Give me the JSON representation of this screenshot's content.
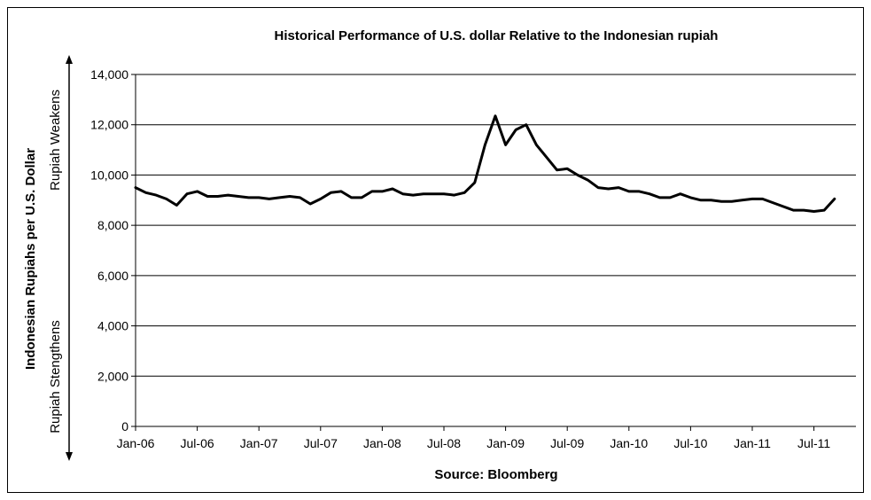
{
  "chart_data": {
    "type": "line",
    "title": "Historical Performance of U.S. dollar Relative to the Indonesian rupiah",
    "xlabel": "Source: Bloomberg",
    "ylabel": "Indonesian Rupiahs per U.S. Dollar",
    "annotations": {
      "top": "Rupiah Weakens",
      "bottom": "Rupiah Stengthens"
    },
    "ylim": [
      0,
      14000
    ],
    "y_ticks": [
      0,
      2000,
      4000,
      6000,
      8000,
      10000,
      12000,
      14000
    ],
    "y_tick_labels": [
      "0",
      "2,000",
      "4,000",
      "6,000",
      "8,000",
      "10,000",
      "12,000",
      "14,000"
    ],
    "x_tick_labels": [
      "Jan-06",
      "Jul-06",
      "Jan-07",
      "Jul-07",
      "Jan-08",
      "Jul-08",
      "Jan-09",
      "Jul-09",
      "Jan-10",
      "Jul-10",
      "Jan-11",
      "Jul-11"
    ],
    "x_tick_dates": [
      "2006-01",
      "2006-07",
      "2007-01",
      "2007-07",
      "2008-01",
      "2008-07",
      "2009-01",
      "2009-07",
      "2010-01",
      "2010-07",
      "2011-01",
      "2011-07"
    ],
    "grid": "horizontal",
    "x": [
      "2006-01",
      "2006-02",
      "2006-03",
      "2006-04",
      "2006-05",
      "2006-06",
      "2006-07",
      "2006-08",
      "2006-09",
      "2006-10",
      "2006-11",
      "2006-12",
      "2007-01",
      "2007-02",
      "2007-03",
      "2007-04",
      "2007-05",
      "2007-06",
      "2007-07",
      "2007-08",
      "2007-09",
      "2007-10",
      "2007-11",
      "2007-12",
      "2008-01",
      "2008-02",
      "2008-03",
      "2008-04",
      "2008-05",
      "2008-06",
      "2008-07",
      "2008-08",
      "2008-09",
      "2008-10",
      "2008-11",
      "2008-12",
      "2009-01",
      "2009-02",
      "2009-03",
      "2009-04",
      "2009-05",
      "2009-06",
      "2009-07",
      "2009-08",
      "2009-09",
      "2009-10",
      "2009-11",
      "2009-12",
      "2010-01",
      "2010-02",
      "2010-03",
      "2010-04",
      "2010-05",
      "2010-06",
      "2010-07",
      "2010-08",
      "2010-09",
      "2010-10",
      "2010-11",
      "2010-12",
      "2011-01",
      "2011-02",
      "2011-03",
      "2011-04",
      "2011-05",
      "2011-06",
      "2011-07",
      "2011-08",
      "2011-09"
    ],
    "series": [
      {
        "color": "#000000",
        "values": [
          9500,
          9300,
          9200,
          9050,
          8800,
          9250,
          9350,
          9150,
          9150,
          9200,
          9150,
          9100,
          9100,
          9050,
          9100,
          9150,
          9100,
          8850,
          9050,
          9300,
          9350,
          9100,
          9100,
          9350,
          9350,
          9450,
          9250,
          9200,
          9250,
          9250,
          9250,
          9200,
          9300,
          9700,
          11200,
          12350,
          11200,
          11800,
          12000,
          11200,
          10700,
          10200,
          10250,
          10000,
          9800,
          9500,
          9450,
          9500,
          9350,
          9350,
          9250,
          9100,
          9100,
          9250,
          9100,
          9000,
          9000,
          8950,
          8950,
          9000,
          9050,
          9050,
          8900,
          8750,
          8600,
          8600,
          8550,
          8600,
          9050
        ]
      }
    ]
  }
}
